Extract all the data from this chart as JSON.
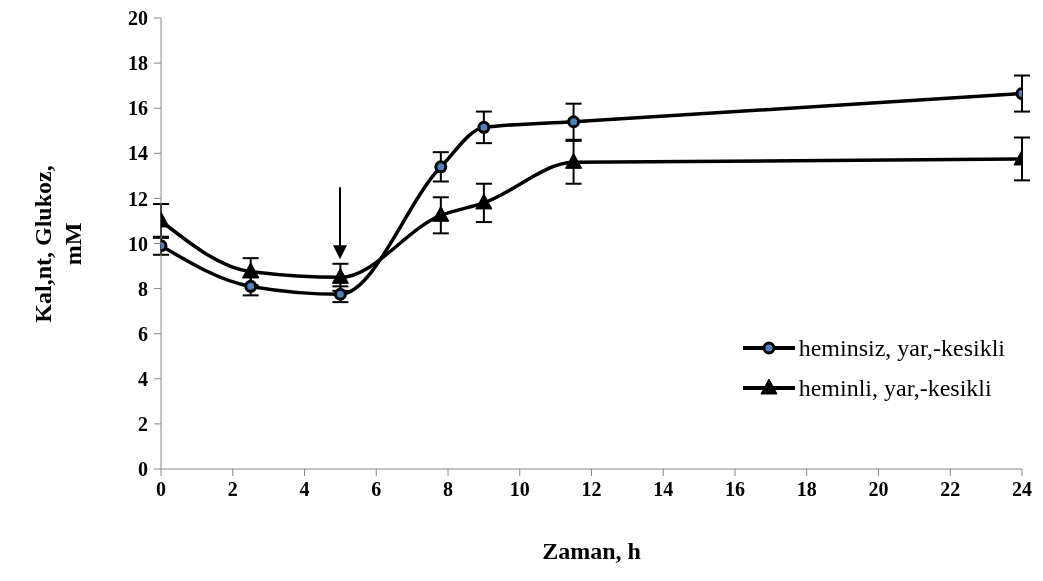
{
  "chart_data": {
    "type": "line",
    "xlabel": "Zaman, h",
    "ylabel": "Kal,nt, Glukoz, mM",
    "x": [
      0,
      2.5,
      5,
      7.8,
      9,
      11.5,
      24
    ],
    "xlim": [
      0,
      24
    ],
    "xticks": [
      0,
      2,
      4,
      6,
      8,
      10,
      12,
      14,
      16,
      18,
      20,
      22,
      24
    ],
    "ylim": [
      0,
      20
    ],
    "yticks": [
      0,
      2,
      4,
      6,
      8,
      10,
      12,
      14,
      16,
      18,
      20
    ],
    "series": [
      {
        "name": "heminsiz, yar,-kesikli",
        "color": "#000000",
        "marker": "circle",
        "values": [
          9.9,
          8.1,
          7.75,
          13.4,
          15.15,
          15.4,
          16.65
        ],
        "errors": [
          0.4,
          0.4,
          0.35,
          0.65,
          0.7,
          0.8,
          0.8
        ]
      },
      {
        "name": "heminli, yar,-kesikli",
        "color": "#000000",
        "marker": "triangle",
        "values": [
          11.0,
          8.75,
          8.5,
          11.25,
          11.8,
          13.6,
          13.75
        ],
        "errors": [
          0.75,
          0.6,
          0.6,
          0.8,
          0.85,
          0.95,
          0.95
        ]
      }
    ],
    "legend": "bottom right",
    "line_style": "solid"
  }
}
